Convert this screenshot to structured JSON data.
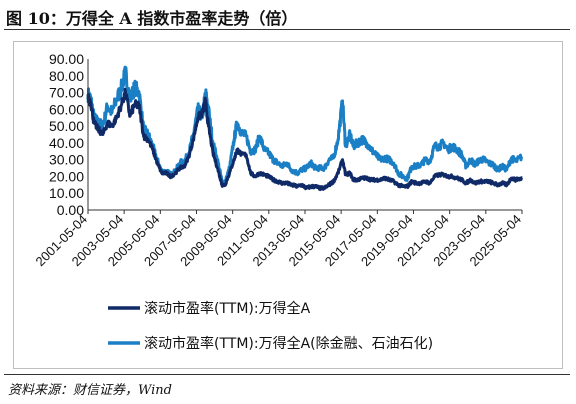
{
  "figure": {
    "title": "图 10：万得全 A 指数市盈率走势（倍）",
    "source": "资料来源：财信证券，Wind"
  },
  "colors": {
    "series_1": "#0f2a66",
    "series_2": "#1a7fc4",
    "axis": "#333333",
    "frame": "#bfbfbf"
  },
  "chart_data": {
    "type": "line",
    "title": "",
    "xlabel": "",
    "ylabel": "",
    "ylim": [
      0,
      90
    ],
    "yticks": [
      "0.00",
      "10.00",
      "20.00",
      "30.00",
      "40.00",
      "50.00",
      "60.00",
      "70.00",
      "80.00",
      "90.00"
    ],
    "xticks": [
      "2001-05-04",
      "2003-05-04",
      "2005-05-04",
      "2007-05-04",
      "2009-05-04",
      "2011-05-04",
      "2013-05-04",
      "2015-05-04",
      "2017-05-04",
      "2019-05-04",
      "2021-05-04",
      "2023-05-04",
      "2025-05-04"
    ],
    "x_range": [
      "2001-05-04",
      "2025-05-04"
    ],
    "grid": false,
    "legend_position": "bottom",
    "series": [
      {
        "name": "滚动市盈率(TTM):万得全A",
        "points": [
          [
            "2001-05-04",
            67
          ],
          [
            "2001-07-01",
            64
          ],
          [
            "2001-09-01",
            52
          ],
          [
            "2001-12-01",
            48
          ],
          [
            "2002-03-01",
            45
          ],
          [
            "2002-06-01",
            52
          ],
          [
            "2002-09-01",
            50
          ],
          [
            "2002-12-01",
            55
          ],
          [
            "2003-03-01",
            62
          ],
          [
            "2003-06-01",
            70
          ],
          [
            "2003-09-01",
            56
          ],
          [
            "2003-12-01",
            63
          ],
          [
            "2004-03-01",
            62
          ],
          [
            "2004-06-01",
            44
          ],
          [
            "2004-09-01",
            42
          ],
          [
            "2004-12-01",
            36
          ],
          [
            "2005-03-01",
            28
          ],
          [
            "2005-06-01",
            22
          ],
          [
            "2005-09-01",
            22
          ],
          [
            "2005-12-01",
            20
          ],
          [
            "2006-03-01",
            22
          ],
          [
            "2006-06-01",
            25
          ],
          [
            "2006-09-01",
            26
          ],
          [
            "2006-12-01",
            32
          ],
          [
            "2007-03-01",
            42
          ],
          [
            "2007-06-01",
            55
          ],
          [
            "2007-09-01",
            58
          ],
          [
            "2007-11-01",
            65
          ],
          [
            "2008-01-01",
            50
          ],
          [
            "2008-04-01",
            34
          ],
          [
            "2008-07-01",
            25
          ],
          [
            "2008-10-01",
            15
          ],
          [
            "2008-12-01",
            15
          ],
          [
            "2009-03-01",
            22
          ],
          [
            "2009-06-01",
            30
          ],
          [
            "2009-08-01",
            36
          ],
          [
            "2009-11-01",
            33
          ],
          [
            "2010-02-01",
            33
          ],
          [
            "2010-05-01",
            22
          ],
          [
            "2010-08-01",
            20
          ],
          [
            "2010-11-01",
            22
          ],
          [
            "2011-02-01",
            21
          ],
          [
            "2011-05-01",
            20
          ],
          [
            "2011-08-01",
            18
          ],
          [
            "2011-11-01",
            17
          ],
          [
            "2012-02-01",
            16
          ],
          [
            "2012-05-01",
            16
          ],
          [
            "2012-08-01",
            15
          ],
          [
            "2012-12-01",
            14
          ],
          [
            "2013-03-01",
            15
          ],
          [
            "2013-06-01",
            13
          ],
          [
            "2013-09-01",
            14
          ],
          [
            "2013-12-01",
            14
          ],
          [
            "2014-03-01",
            13
          ],
          [
            "2014-06-01",
            13
          ],
          [
            "2014-09-01",
            15
          ],
          [
            "2014-12-01",
            17
          ],
          [
            "2015-03-01",
            22
          ],
          [
            "2015-06-01",
            30
          ],
          [
            "2015-08-01",
            21
          ],
          [
            "2015-11-01",
            22
          ],
          [
            "2016-01-01",
            18
          ],
          [
            "2016-04-01",
            18
          ],
          [
            "2016-07-01",
            19
          ],
          [
            "2016-10-01",
            19
          ],
          [
            "2017-01-01",
            18
          ],
          [
            "2017-04-01",
            18
          ],
          [
            "2017-07-01",
            18
          ],
          [
            "2017-10-01",
            19
          ],
          [
            "2018-01-01",
            18
          ],
          [
            "2018-04-01",
            17
          ],
          [
            "2018-07-01",
            15
          ],
          [
            "2018-10-01",
            14
          ],
          [
            "2019-01-01",
            14
          ],
          [
            "2019-04-01",
            17
          ],
          [
            "2019-07-01",
            16
          ],
          [
            "2019-10-01",
            16
          ],
          [
            "2020-01-01",
            17
          ],
          [
            "2020-04-01",
            16
          ],
          [
            "2020-07-01",
            20
          ],
          [
            "2020-10-01",
            21
          ],
          [
            "2021-01-01",
            21
          ],
          [
            "2021-04-01",
            20
          ],
          [
            "2021-07-01",
            20
          ],
          [
            "2021-10-01",
            19
          ],
          [
            "2022-01-01",
            18
          ],
          [
            "2022-04-01",
            16
          ],
          [
            "2022-07-01",
            18
          ],
          [
            "2022-10-01",
            16
          ],
          [
            "2023-01-01",
            17
          ],
          [
            "2023-04-01",
            17
          ],
          [
            "2023-07-01",
            17
          ],
          [
            "2023-10-01",
            16
          ],
          [
            "2024-01-01",
            15
          ],
          [
            "2024-04-01",
            16
          ],
          [
            "2024-07-01",
            15
          ],
          [
            "2024-10-01",
            19
          ],
          [
            "2025-01-01",
            18
          ],
          [
            "2025-05-04",
            19
          ]
        ]
      },
      {
        "name": "滚动市盈率(TTM):万得全A(除金融、石油石化)",
        "points": [
          [
            "2001-05-04",
            69
          ],
          [
            "2001-07-01",
            66
          ],
          [
            "2001-09-01",
            55
          ],
          [
            "2001-12-01",
            52
          ],
          [
            "2002-03-01",
            50
          ],
          [
            "2002-06-01",
            62
          ],
          [
            "2002-09-01",
            58
          ],
          [
            "2002-12-01",
            66
          ],
          [
            "2003-03-01",
            72
          ],
          [
            "2003-06-01",
            82
          ],
          [
            "2003-09-01",
            66
          ],
          [
            "2003-12-01",
            73
          ],
          [
            "2004-03-01",
            70
          ],
          [
            "2004-06-01",
            48
          ],
          [
            "2004-09-01",
            45
          ],
          [
            "2004-12-01",
            38
          ],
          [
            "2005-03-01",
            30
          ],
          [
            "2005-06-01",
            23
          ],
          [
            "2005-09-01",
            23
          ],
          [
            "2005-12-01",
            21
          ],
          [
            "2006-03-01",
            23
          ],
          [
            "2006-06-01",
            28
          ],
          [
            "2006-09-01",
            29
          ],
          [
            "2006-12-01",
            34
          ],
          [
            "2007-03-01",
            45
          ],
          [
            "2007-06-01",
            60
          ],
          [
            "2007-09-01",
            55
          ],
          [
            "2007-11-01",
            70
          ],
          [
            "2008-01-01",
            60
          ],
          [
            "2008-04-01",
            40
          ],
          [
            "2008-07-01",
            30
          ],
          [
            "2008-10-01",
            17
          ],
          [
            "2008-12-01",
            16
          ],
          [
            "2009-03-01",
            25
          ],
          [
            "2009-06-01",
            42
          ],
          [
            "2009-08-01",
            52
          ],
          [
            "2009-11-01",
            46
          ],
          [
            "2010-02-01",
            44
          ],
          [
            "2010-05-01",
            35
          ],
          [
            "2010-08-01",
            36
          ],
          [
            "2010-11-01",
            44
          ],
          [
            "2011-02-01",
            36
          ],
          [
            "2011-05-01",
            34
          ],
          [
            "2011-08-01",
            30
          ],
          [
            "2011-11-01",
            28
          ],
          [
            "2012-02-01",
            26
          ],
          [
            "2012-05-01",
            28
          ],
          [
            "2012-08-01",
            24
          ],
          [
            "2012-12-01",
            22
          ],
          [
            "2013-03-01",
            24
          ],
          [
            "2013-06-01",
            25
          ],
          [
            "2013-09-01",
            28
          ],
          [
            "2013-12-01",
            25
          ],
          [
            "2014-03-01",
            25
          ],
          [
            "2014-06-01",
            25
          ],
          [
            "2014-09-01",
            30
          ],
          [
            "2014-12-01",
            31
          ],
          [
            "2015-03-01",
            42
          ],
          [
            "2015-06-01",
            65
          ],
          [
            "2015-08-01",
            38
          ],
          [
            "2015-11-01",
            45
          ],
          [
            "2016-01-01",
            38
          ],
          [
            "2016-04-01",
            40
          ],
          [
            "2016-07-01",
            42
          ],
          [
            "2016-10-01",
            40
          ],
          [
            "2017-01-01",
            36
          ],
          [
            "2017-04-01",
            33
          ],
          [
            "2017-07-01",
            30
          ],
          [
            "2017-10-01",
            31
          ],
          [
            "2018-01-01",
            30
          ],
          [
            "2018-04-01",
            28
          ],
          [
            "2018-07-01",
            22
          ],
          [
            "2018-10-01",
            20
          ],
          [
            "2019-01-01",
            19
          ],
          [
            "2019-04-01",
            26
          ],
          [
            "2019-07-01",
            26
          ],
          [
            "2019-10-01",
            27
          ],
          [
            "2020-01-01",
            30
          ],
          [
            "2020-04-01",
            29
          ],
          [
            "2020-07-01",
            38
          ],
          [
            "2020-10-01",
            38
          ],
          [
            "2021-01-01",
            40
          ],
          [
            "2021-04-01",
            36
          ],
          [
            "2021-07-01",
            38
          ],
          [
            "2021-10-01",
            36
          ],
          [
            "2022-01-01",
            33
          ],
          [
            "2022-04-01",
            26
          ],
          [
            "2022-07-01",
            30
          ],
          [
            "2022-10-01",
            27
          ],
          [
            "2023-01-01",
            30
          ],
          [
            "2023-04-01",
            30
          ],
          [
            "2023-07-01",
            28
          ],
          [
            "2023-10-01",
            27
          ],
          [
            "2024-01-01",
            24
          ],
          [
            "2024-04-01",
            26
          ],
          [
            "2024-07-01",
            24
          ],
          [
            "2024-10-01",
            31
          ],
          [
            "2025-01-01",
            29
          ],
          [
            "2025-05-04",
            32
          ]
        ]
      }
    ]
  }
}
